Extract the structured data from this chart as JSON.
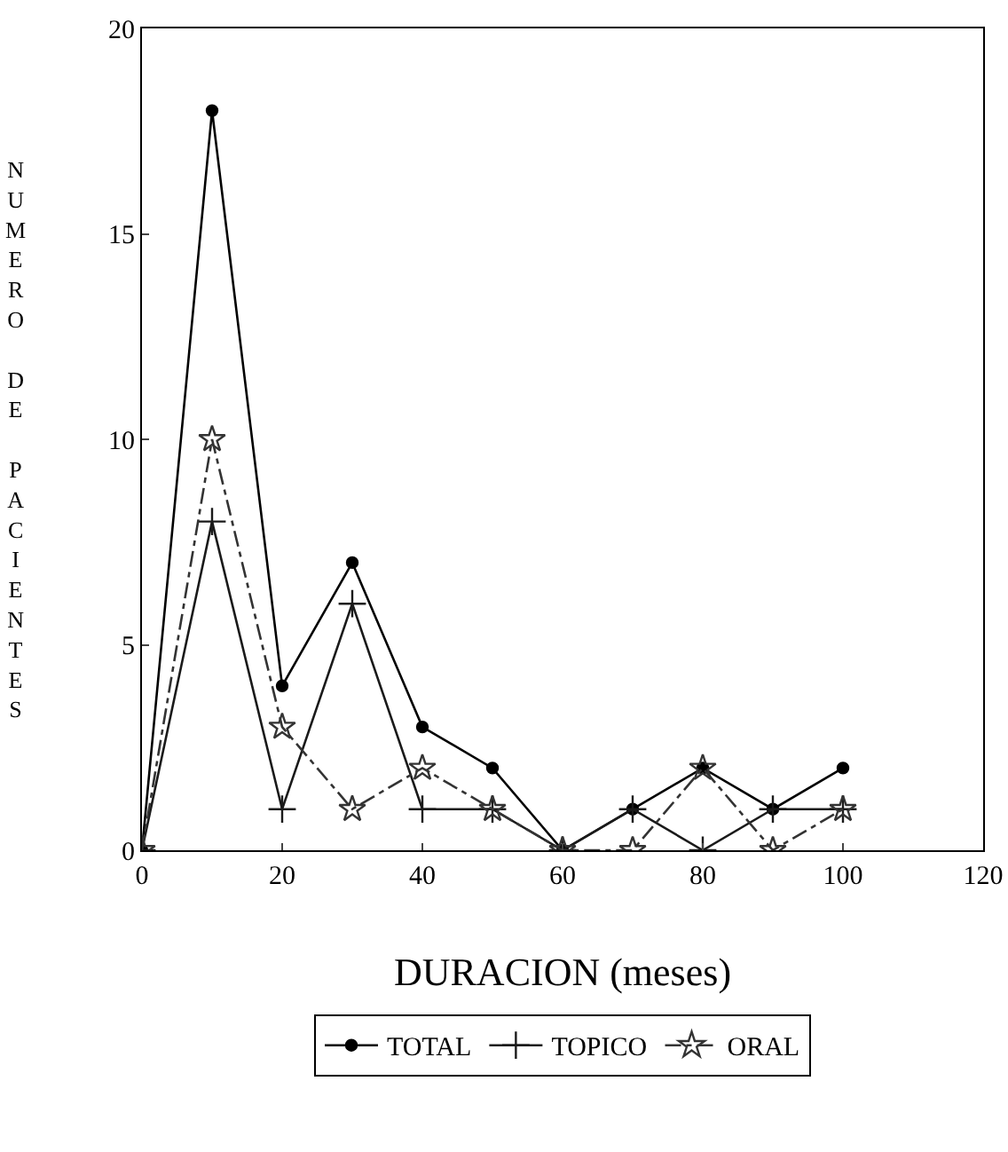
{
  "chart_data": {
    "type": "line",
    "xlabel": "DURACION (meses)",
    "ylabel": "NUMERO DE PACIENTES",
    "x": [
      0,
      10,
      20,
      30,
      40,
      50,
      60,
      70,
      80,
      90,
      100
    ],
    "series": [
      {
        "name": "TOTAL",
        "color": "#000000",
        "marker": "circle",
        "line_style": "solid",
        "values": [
          0,
          18,
          4,
          7,
          3,
          2,
          0,
          1,
          2,
          1,
          2
        ]
      },
      {
        "name": "TOPICO",
        "color": "#1a1a1a",
        "marker": "cross",
        "line_style": "solid",
        "values": [
          0,
          8,
          1,
          6,
          1,
          1,
          0,
          1,
          0,
          1,
          1
        ]
      },
      {
        "name": "ORAL",
        "color": "#333333",
        "marker": "star",
        "line_style": "dashed",
        "values": [
          0,
          10,
          3,
          1,
          2,
          1,
          0,
          0,
          2,
          0,
          1
        ]
      }
    ],
    "xlim": [
      0,
      120
    ],
    "xticks": [
      0,
      20,
      40,
      60,
      80,
      100,
      120
    ],
    "ylim": [
      0,
      20
    ],
    "yticks": [
      0,
      5,
      10,
      15,
      20
    ],
    "grid": false,
    "legend": "bottom"
  }
}
